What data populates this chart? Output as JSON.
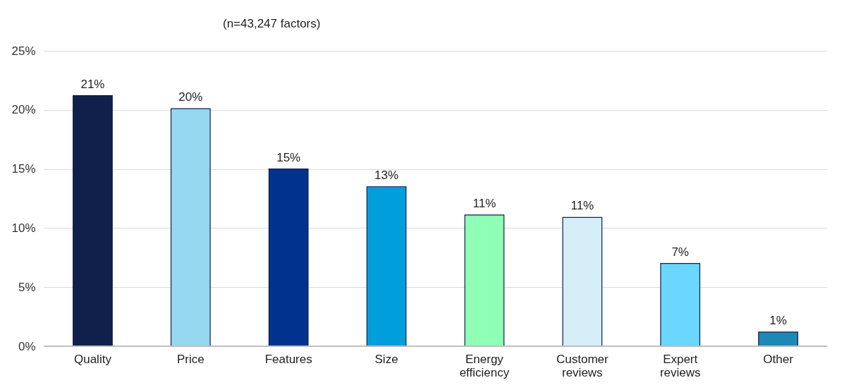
{
  "chart_data": {
    "type": "bar",
    "subtitle": "(n=43,247 factors)",
    "categories": [
      "Quality",
      "Price",
      "Features",
      "Size",
      "Energy efficiency",
      "Customer reviews",
      "Expert reviews",
      "Other"
    ],
    "values": [
      21.2,
      20.1,
      15.0,
      13.5,
      11.1,
      10.9,
      7.0,
      1.2
    ],
    "value_labels": [
      "21%",
      "20%",
      "15%",
      "13%",
      "11%",
      "11%",
      "7%",
      "1%"
    ],
    "colors": [
      "#11204a",
      "#96d8ef",
      "#00338d",
      "#009fdb",
      "#8fffb5",
      "#d5eef8",
      "#6bd6ff",
      "#1e88b4"
    ],
    "ylim": [
      0,
      25
    ],
    "yticks": [
      {
        "value": 0,
        "label": "0%"
      },
      {
        "value": 5,
        "label": "5%"
      },
      {
        "value": 10,
        "label": "10%"
      },
      {
        "value": 15,
        "label": "15%"
      },
      {
        "value": 20,
        "label": "20%"
      },
      {
        "value": 25,
        "label": "25%"
      }
    ],
    "grid": "y"
  }
}
